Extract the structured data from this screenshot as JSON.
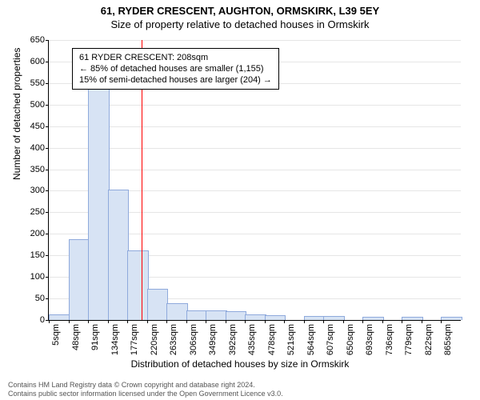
{
  "title": {
    "line1": "61, RYDER CRESCENT, AUGHTON, ORMSKIRK, L39 5EY",
    "line2": "Size of property relative to detached houses in Ormskirk"
  },
  "ylabel": "Number of detached properties",
  "xlabel": "Distribution of detached houses by size in Ormskirk",
  "chart": {
    "type": "histogram",
    "ylim": [
      0,
      650
    ],
    "ytick_step": 50,
    "xtick_start": 5,
    "xtick_step": 43,
    "xtick_count": 21,
    "xtick_unit": "sqm",
    "bar_fill": "#d7e3f4",
    "bar_stroke": "#8faadc",
    "bg_color": "#ffffff",
    "grid_color": "#e6e6e6",
    "ref_line_x": 208,
    "ref_line_color": "#ff0000",
    "bins": [
      {
        "x": 5,
        "count": 12
      },
      {
        "x": 48,
        "count": 185
      },
      {
        "x": 91,
        "count": 548
      },
      {
        "x": 134,
        "count": 300
      },
      {
        "x": 177,
        "count": 160
      },
      {
        "x": 220,
        "count": 70
      },
      {
        "x": 263,
        "count": 38
      },
      {
        "x": 306,
        "count": 20
      },
      {
        "x": 349,
        "count": 20
      },
      {
        "x": 392,
        "count": 18
      },
      {
        "x": 435,
        "count": 12
      },
      {
        "x": 478,
        "count": 10
      },
      {
        "x": 521,
        "count": 0
      },
      {
        "x": 564,
        "count": 8
      },
      {
        "x": 607,
        "count": 8
      },
      {
        "x": 650,
        "count": 0
      },
      {
        "x": 693,
        "count": 5
      },
      {
        "x": 736,
        "count": 0
      },
      {
        "x": 779,
        "count": 5
      },
      {
        "x": 822,
        "count": 0
      },
      {
        "x": 865,
        "count": 5
      }
    ]
  },
  "infobox": {
    "line1": "61 RYDER CRESCENT: 208sqm",
    "line2": "← 85% of detached houses are smaller (1,155)",
    "line3": "15% of semi-detached houses are larger (204) →"
  },
  "footer": {
    "line1": "Contains HM Land Registry data © Crown copyright and database right 2024.",
    "line2": "Contains public sector information licensed under the Open Government Licence v3.0."
  }
}
